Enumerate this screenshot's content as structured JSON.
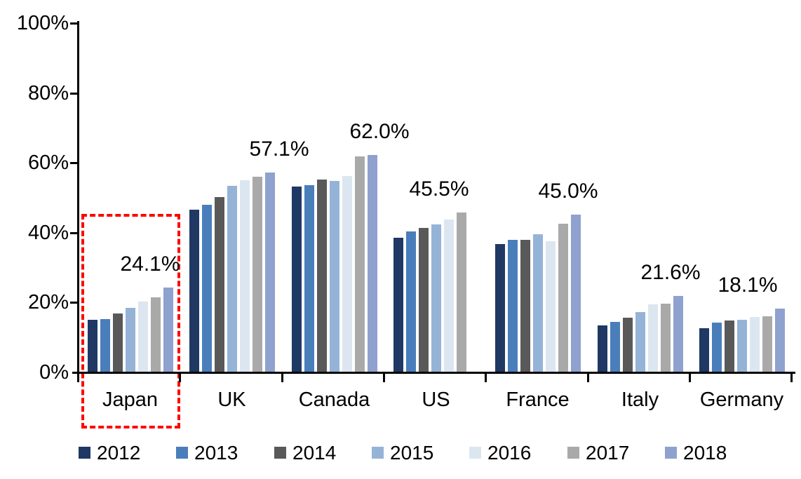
{
  "chart_data": {
    "type": "bar",
    "title": "",
    "xlabel": "",
    "ylabel": "",
    "categories": [
      "Japan",
      "UK",
      "Canada",
      "US",
      "France",
      "Italy",
      "Germany"
    ],
    "series": [
      {
        "name": "2012",
        "color": "#1F3864",
        "values": [
          14.8,
          46.4,
          53.0,
          38.3,
          36.5,
          13.3,
          12.5
        ]
      },
      {
        "name": "2013",
        "color": "#4A7EBB",
        "values": [
          15.0,
          47.7,
          53.5,
          40.1,
          37.7,
          14.3,
          14.0
        ]
      },
      {
        "name": "2014",
        "color": "#595959",
        "values": [
          16.7,
          50.0,
          55.0,
          41.2,
          37.7,
          15.5,
          14.7
        ]
      },
      {
        "name": "2015",
        "color": "#95B3D7",
        "values": [
          18.3,
          53.3,
          54.7,
          42.1,
          39.4,
          17.1,
          14.8
        ]
      },
      {
        "name": "2016",
        "color": "#DCE6F1",
        "values": [
          20.1,
          54.8,
          56.1,
          43.5,
          37.4,
          19.3,
          15.6
        ]
      },
      {
        "name": "2017",
        "color": "#A9A9A9",
        "values": [
          21.2,
          55.8,
          61.7,
          45.5,
          42.4,
          19.5,
          15.9
        ]
      },
      {
        "name": "2018",
        "color": "#8FA1CE",
        "values": [
          24.1,
          57.1,
          62.0,
          null,
          45.0,
          21.6,
          18.1
        ]
      }
    ],
    "data_labels": [
      "24.1%",
      "57.1%",
      "62.0%",
      "45.5%",
      "45.0%",
      "21.6%",
      "18.1%"
    ],
    "y_axis": {
      "min": 0,
      "max": 100,
      "step": 20,
      "tick_labels": [
        "0%",
        "20%",
        "40%",
        "60%",
        "80%",
        "100%"
      ],
      "grid": false
    },
    "legend": {
      "position": "bottom",
      "entries": [
        "2012",
        "2013",
        "2014",
        "2015",
        "2016",
        "2017",
        "2018"
      ]
    },
    "highlight": {
      "category": "Japan",
      "style": "dashed-rectangle",
      "color": "#FF0000"
    }
  }
}
